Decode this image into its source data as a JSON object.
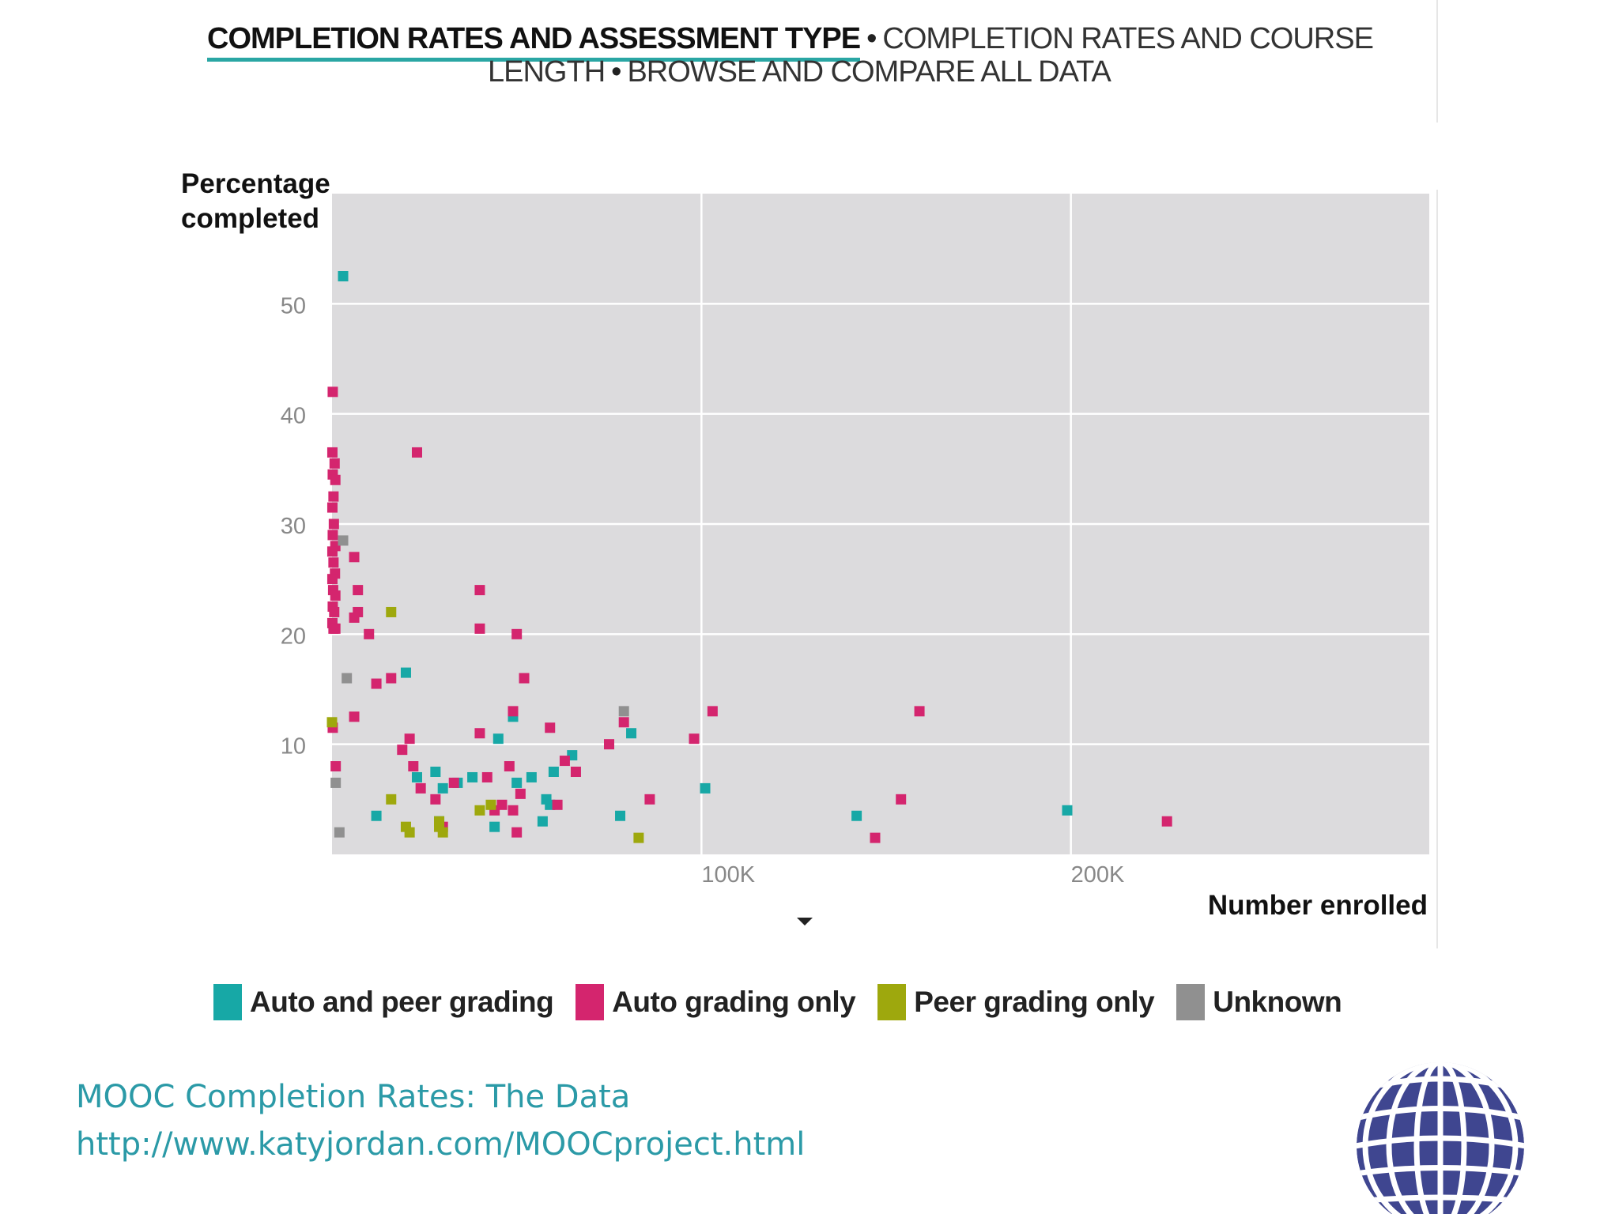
{
  "nav": {
    "active_tab": "COMPLETION RATES AND ASSESSMENT TYPE",
    "separator": "•",
    "tab2_part1": "COMPLETION RATES AND COURSE",
    "tab2_part2": "LENGTH",
    "tab3": "BROWSE AND COMPARE ALL DATA",
    "accent_color": "#2aa6a4"
  },
  "chart_data": {
    "type": "scatter",
    "ylabel_line1": "Percentage",
    "ylabel_line2": "completed",
    "xlabel": "Number enrolled",
    "x_ticks": [
      {
        "value": 100000,
        "label": "100K"
      },
      {
        "value": 200000,
        "label": "200K"
      }
    ],
    "y_ticks": [
      {
        "value": 10,
        "label": "10"
      },
      {
        "value": 20,
        "label": "20"
      },
      {
        "value": 30,
        "label": "30"
      },
      {
        "value": 40,
        "label": "40"
      },
      {
        "value": 50,
        "label": "50"
      }
    ],
    "xlim": [
      0,
      297000
    ],
    "ylim": [
      0,
      60
    ],
    "grid": true,
    "legend_position": "bottom",
    "series": [
      {
        "name": "Auto and peer grading",
        "color": "#17a8a6",
        "points": [
          [
            3000,
            52.5
          ],
          [
            20000,
            16.5
          ],
          [
            12000,
            3.5
          ],
          [
            23000,
            7
          ],
          [
            28000,
            7.5
          ],
          [
            30000,
            6
          ],
          [
            34000,
            6.5
          ],
          [
            38000,
            7
          ],
          [
            45000,
            10.5
          ],
          [
            49000,
            12.5
          ],
          [
            50000,
            6.5
          ],
          [
            54000,
            7
          ],
          [
            57000,
            3
          ],
          [
            58000,
            5
          ],
          [
            59000,
            4.5
          ],
          [
            60000,
            7.5
          ],
          [
            65000,
            9
          ],
          [
            78000,
            3.5
          ],
          [
            81000,
            11
          ],
          [
            101000,
            6
          ],
          [
            142000,
            3.5
          ],
          [
            199000,
            4
          ],
          [
            44000,
            2.5
          ],
          [
            29000,
            3
          ]
        ]
      },
      {
        "name": "Auto grading only",
        "color": "#d4256e",
        "points": [
          [
            200,
            42
          ],
          [
            100,
            36.5
          ],
          [
            700,
            35.5
          ],
          [
            200,
            34.5
          ],
          [
            900,
            34
          ],
          [
            400,
            32.5
          ],
          [
            100,
            31.5
          ],
          [
            500,
            30
          ],
          [
            200,
            29
          ],
          [
            900,
            28
          ],
          [
            100,
            27.5
          ],
          [
            400,
            26.5
          ],
          [
            800,
            25.5
          ],
          [
            100,
            25
          ],
          [
            300,
            24
          ],
          [
            900,
            23.5
          ],
          [
            200,
            22.5
          ],
          [
            600,
            22
          ],
          [
            100,
            21
          ],
          [
            400,
            20.5
          ],
          [
            900,
            20.5
          ],
          [
            6000,
            27
          ],
          [
            7000,
            24
          ],
          [
            7000,
            22
          ],
          [
            6000,
            21.5
          ],
          [
            10000,
            20
          ],
          [
            23000,
            36.5
          ],
          [
            40000,
            24
          ],
          [
            40000,
            20.5
          ],
          [
            50000,
            20
          ],
          [
            52000,
            16
          ],
          [
            16000,
            16
          ],
          [
            12000,
            15.5
          ],
          [
            6000,
            12.5
          ],
          [
            200,
            11.5
          ],
          [
            1000,
            8
          ],
          [
            19000,
            9.5
          ],
          [
            21000,
            10.5
          ],
          [
            22000,
            8
          ],
          [
            24000,
            6
          ],
          [
            28000,
            5
          ],
          [
            33000,
            6.5
          ],
          [
            40000,
            11
          ],
          [
            42000,
            7
          ],
          [
            49000,
            13
          ],
          [
            48000,
            8
          ],
          [
            51000,
            5.5
          ],
          [
            46000,
            4.5
          ],
          [
            49000,
            4
          ],
          [
            44000,
            4
          ],
          [
            50000,
            2
          ],
          [
            59000,
            11.5
          ],
          [
            61000,
            4.5
          ],
          [
            63000,
            8.5
          ],
          [
            66000,
            7.5
          ],
          [
            75000,
            10
          ],
          [
            79000,
            12
          ],
          [
            86000,
            5
          ],
          [
            98000,
            10.5
          ],
          [
            103000,
            13
          ],
          [
            147000,
            1.5
          ],
          [
            154000,
            5
          ],
          [
            159000,
            13
          ],
          [
            226000,
            3
          ],
          [
            30000,
            2.5
          ]
        ]
      },
      {
        "name": "Peer grading only",
        "color": "#9ea80d",
        "points": [
          [
            16000,
            22
          ],
          [
            0,
            12
          ],
          [
            16000,
            5
          ],
          [
            20000,
            2.5
          ],
          [
            21000,
            2
          ],
          [
            29000,
            2.5
          ],
          [
            29000,
            3
          ],
          [
            40000,
            4
          ],
          [
            43000,
            4.5
          ],
          [
            83000,
            1.5
          ],
          [
            30000,
            2
          ]
        ]
      },
      {
        "name": "Unknown",
        "color": "#909090",
        "points": [
          [
            3000,
            28.5
          ],
          [
            4000,
            16
          ],
          [
            1000,
            6.5
          ],
          [
            2000,
            2
          ],
          [
            79000,
            13
          ]
        ]
      }
    ]
  },
  "caption": {
    "line1": "MOOC Completion Rates: The Data",
    "line2": "http://www.katyjordan.com/MOOCproject.html"
  },
  "logo": {
    "icon": "globe-grid-icon",
    "color": "#3f4690"
  }
}
